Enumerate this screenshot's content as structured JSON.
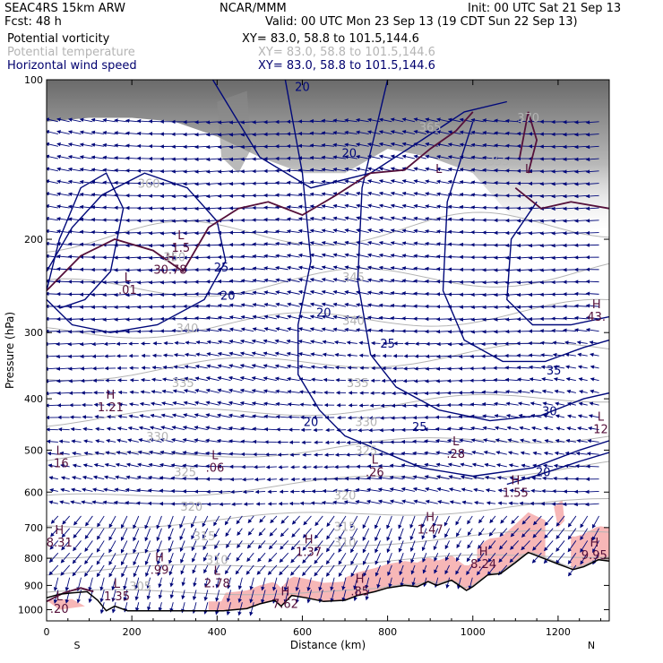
{
  "header": {
    "model": "SEAC4RS 15km ARW",
    "forecast": "Fcst:    48 h",
    "center": "NCAR/MMM",
    "init": "Init: 00 UTC Sat 21 Sep 13",
    "valid": "Valid: 00 UTC Mon 23 Sep 13 (19 CDT Sun 22 Sep 13)"
  },
  "legend": [
    {
      "label": "Potential vorticity",
      "xy": "XY=  83.0, 58.8 to 101.5,144.6",
      "color": "#000000"
    },
    {
      "label": "Potential temperature",
      "xy": "XY=  83.0, 58.8 to 101.5,144.6",
      "color": "#b4b4b4"
    },
    {
      "label": "Horizontal wind speed",
      "xy": "XY=  83.0, 58.8 to 101.5,144.6",
      "color": "#00006e"
    }
  ],
  "colors": {
    "pv": "#55103a",
    "theta": "#b4b4b4",
    "wind": "#00087a",
    "shade": "#f7b7b7",
    "terrain": "#000000"
  },
  "chart_data": {
    "type": "cross-section",
    "xlabel": "Distance (km)",
    "ylabel": "Pressure (hPa)",
    "xlim": [
      0,
      1320
    ],
    "ylim": [
      1050,
      100
    ],
    "y_scale": "log-pressure",
    "x_ticks": [
      0,
      200,
      400,
      600,
      800,
      1000,
      1200
    ],
    "y_ticks": [
      100,
      200,
      300,
      400,
      500,
      600,
      700,
      800,
      900,
      1000
    ],
    "endpoints": [
      "S",
      "N"
    ],
    "terrain": [
      [
        0,
        950
      ],
      [
        30,
        935
      ],
      [
        60,
        930
      ],
      [
        95,
        925
      ],
      [
        120,
        960
      ],
      [
        140,
        1005
      ],
      [
        160,
        985
      ],
      [
        190,
        1005
      ],
      [
        240,
        1005
      ],
      [
        300,
        1005
      ],
      [
        350,
        1005
      ],
      [
        380,
        1005
      ],
      [
        415,
        1005
      ],
      [
        470,
        995
      ],
      [
        500,
        975
      ],
      [
        535,
        960
      ],
      [
        550,
        985
      ],
      [
        575,
        940
      ],
      [
        610,
        950
      ],
      [
        650,
        965
      ],
      [
        700,
        960
      ],
      [
        730,
        940
      ],
      [
        770,
        925
      ],
      [
        800,
        910
      ],
      [
        840,
        900
      ],
      [
        870,
        905
      ],
      [
        895,
        885
      ],
      [
        915,
        900
      ],
      [
        950,
        880
      ],
      [
        985,
        920
      ],
      [
        1000,
        905
      ],
      [
        1035,
        860
      ],
      [
        1065,
        855
      ],
      [
        1100,
        815
      ],
      [
        1130,
        780
      ],
      [
        1165,
        800
      ],
      [
        1200,
        820
      ],
      [
        1235,
        840
      ],
      [
        1260,
        830
      ],
      [
        1295,
        805
      ],
      [
        1320,
        810
      ]
    ],
    "pv_labels": [
      {
        "kind": "L",
        "value": ".01",
        "x": 190,
        "p": 240
      },
      {
        "kind": "H",
        "value": "30.78",
        "x": 290,
        "p": 220
      },
      {
        "kind": "L",
        "value": "1.5",
        "x": 315,
        "p": 200
      },
      {
        "kind": "H",
        "value": "1.21",
        "x": 150,
        "p": 400
      },
      {
        "kind": "L",
        "value": ".16",
        "x": 30,
        "p": 510
      },
      {
        "kind": "L",
        "value": ".06",
        "x": 395,
        "p": 520
      },
      {
        "kind": "L",
        "value": ".26",
        "x": 770,
        "p": 530
      },
      {
        "kind": "L",
        "value": ".28",
        "x": 960,
        "p": 490
      },
      {
        "kind": "H",
        "value": "1.55",
        "x": 1100,
        "p": 580
      },
      {
        "kind": "H",
        "value": "1.47",
        "x": 900,
        "p": 680
      },
      {
        "kind": "H",
        "value": "8.31",
        "x": 30,
        "p": 720
      },
      {
        "kind": "H",
        "value": "1.37",
        "x": 615,
        "p": 750
      },
      {
        "kind": "H",
        "value": "8.24",
        "x": 1025,
        "p": 790
      },
      {
        "kind": "H",
        "value": "9.95",
        "x": 1285,
        "p": 760
      },
      {
        "kind": "H",
        "value": ".99",
        "x": 265,
        "p": 810
      },
      {
        "kind": "L",
        "value": "2.78",
        "x": 400,
        "p": 860
      },
      {
        "kind": "H",
        "value": ".85",
        "x": 735,
        "p": 890
      },
      {
        "kind": "L",
        "value": "1.35",
        "x": 165,
        "p": 910
      },
      {
        "kind": "H",
        "value": "7.62",
        "x": 560,
        "p": 940
      },
      {
        "kind": "L",
        "value": ".20",
        "x": 30,
        "p": 960
      },
      {
        "kind": "H",
        "value": "43.",
        "x": 1290,
        "p": 270
      },
      {
        "kind": "L",
        "value": "12",
        "x": 1300,
        "p": 440
      },
      {
        "kind": "L",
        "value": "",
        "x": 920,
        "p": 150
      },
      {
        "kind": "L",
        "value": "",
        "x": 1130,
        "p": 150
      }
    ],
    "theta_labels": [
      {
        "value": "340",
        "x": 330,
        "p": 300
      },
      {
        "value": "335",
        "x": 320,
        "p": 380
      },
      {
        "value": "330",
        "x": 260,
        "p": 480
      },
      {
        "value": "325",
        "x": 325,
        "p": 560
      },
      {
        "value": "320",
        "x": 340,
        "p": 650
      },
      {
        "value": "315",
        "x": 370,
        "p": 740
      },
      {
        "value": "310",
        "x": 400,
        "p": 820
      },
      {
        "value": "305",
        "x": 220,
        "p": 920
      },
      {
        "value": "340",
        "x": 720,
        "p": 290
      },
      {
        "value": "335",
        "x": 730,
        "p": 380
      },
      {
        "value": "330",
        "x": 750,
        "p": 450
      },
      {
        "value": "325",
        "x": 750,
        "p": 510
      },
      {
        "value": "320",
        "x": 700,
        "p": 620
      },
      {
        "value": "315",
        "x": 700,
        "p": 710
      },
      {
        "value": "310",
        "x": 700,
        "p": 760
      },
      {
        "value": "345",
        "x": 720,
        "p": 240
      },
      {
        "value": "350",
        "x": 300,
        "p": 220
      },
      {
        "value": "365",
        "x": 900,
        "p": 125
      },
      {
        "value": "370",
        "x": 1130,
        "p": 120
      },
      {
        "value": "360",
        "x": 240,
        "p": 160
      },
      {
        "value": "355",
        "x": 1060,
        "p": 145
      }
    ],
    "wind_labels": [
      {
        "value": "20",
        "x": 600,
        "p": 105
      },
      {
        "value": "20",
        "x": 710,
        "p": 140
      },
      {
        "value": "25",
        "x": 410,
        "p": 230
      },
      {
        "value": "20",
        "x": 425,
        "p": 260
      },
      {
        "value": "20",
        "x": 650,
        "p": 280
      },
      {
        "value": "25",
        "x": 800,
        "p": 320
      },
      {
        "value": "30",
        "x": 1180,
        "p": 430
      },
      {
        "value": "35",
        "x": 1190,
        "p": 360
      },
      {
        "value": "25",
        "x": 875,
        "p": 460
      },
      {
        "value": "20",
        "x": 620,
        "p": 450
      },
      {
        "value": "20",
        "x": 1165,
        "p": 560
      }
    ]
  }
}
